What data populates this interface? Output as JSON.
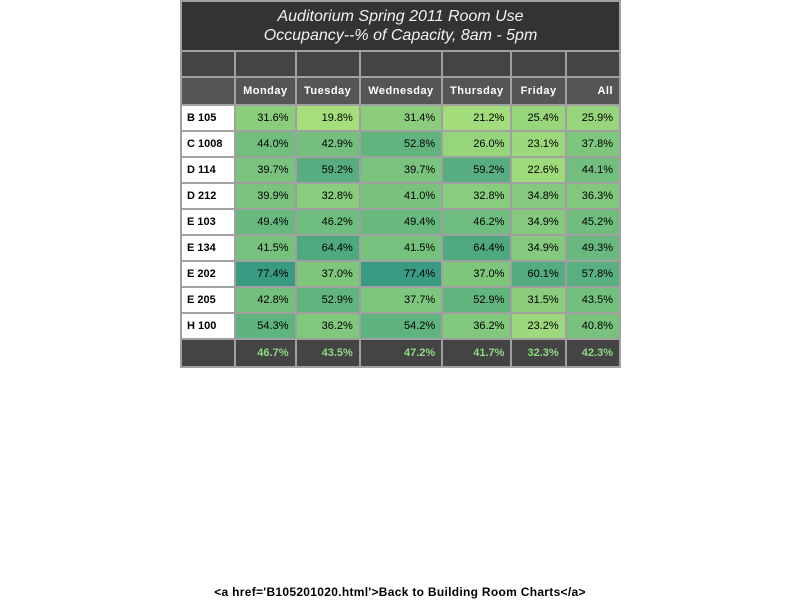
{
  "chart_data": {
    "type": "heatmap",
    "title": "Auditorium Spring 2011 Room Use",
    "subtitle": "Occupancy--% of Capacity, 8am - 5pm",
    "columns": [
      "Monday",
      "Tuesday",
      "Wednesday",
      "Thursday",
      "Friday",
      "All"
    ],
    "rows": [
      {
        "room": "B 105",
        "values": [
          "31.6%",
          "19.8%",
          "31.4%",
          "21.2%",
          "25.4%",
          "25.9%"
        ]
      },
      {
        "room": "C 1008",
        "values": [
          "44.0%",
          "42.9%",
          "52.8%",
          "26.0%",
          "23.1%",
          "37.8%"
        ]
      },
      {
        "room": "D 114",
        "values": [
          "39.7%",
          "59.2%",
          "39.7%",
          "59.2%",
          "22.6%",
          "44.1%"
        ]
      },
      {
        "room": "D 212",
        "values": [
          "39.9%",
          "32.8%",
          "41.0%",
          "32.8%",
          "34.8%",
          "36.3%"
        ]
      },
      {
        "room": "E 103",
        "values": [
          "49.4%",
          "46.2%",
          "49.4%",
          "46.2%",
          "34.9%",
          "45.2%"
        ]
      },
      {
        "room": "E 134",
        "values": [
          "41.5%",
          "64.4%",
          "41.5%",
          "64.4%",
          "34.9%",
          "49.3%"
        ]
      },
      {
        "room": "E 202",
        "values": [
          "77.4%",
          "37.0%",
          "77.4%",
          "37.0%",
          "60.1%",
          "57.8%"
        ]
      },
      {
        "room": "E 205",
        "values": [
          "42.8%",
          "52.9%",
          "37.7%",
          "52.9%",
          "31.5%",
          "43.5%"
        ]
      },
      {
        "room": "H 100",
        "values": [
          "54.3%",
          "36.2%",
          "54.2%",
          "36.2%",
          "23.2%",
          "40.8%"
        ]
      }
    ],
    "totals": [
      "46.7%",
      "43.5%",
      "47.2%",
      "41.7%",
      "32.3%",
      "42.3%"
    ]
  },
  "footer": {
    "text": "<a href='B105201020.html'>Back to Building  Room  Charts</a>"
  }
}
